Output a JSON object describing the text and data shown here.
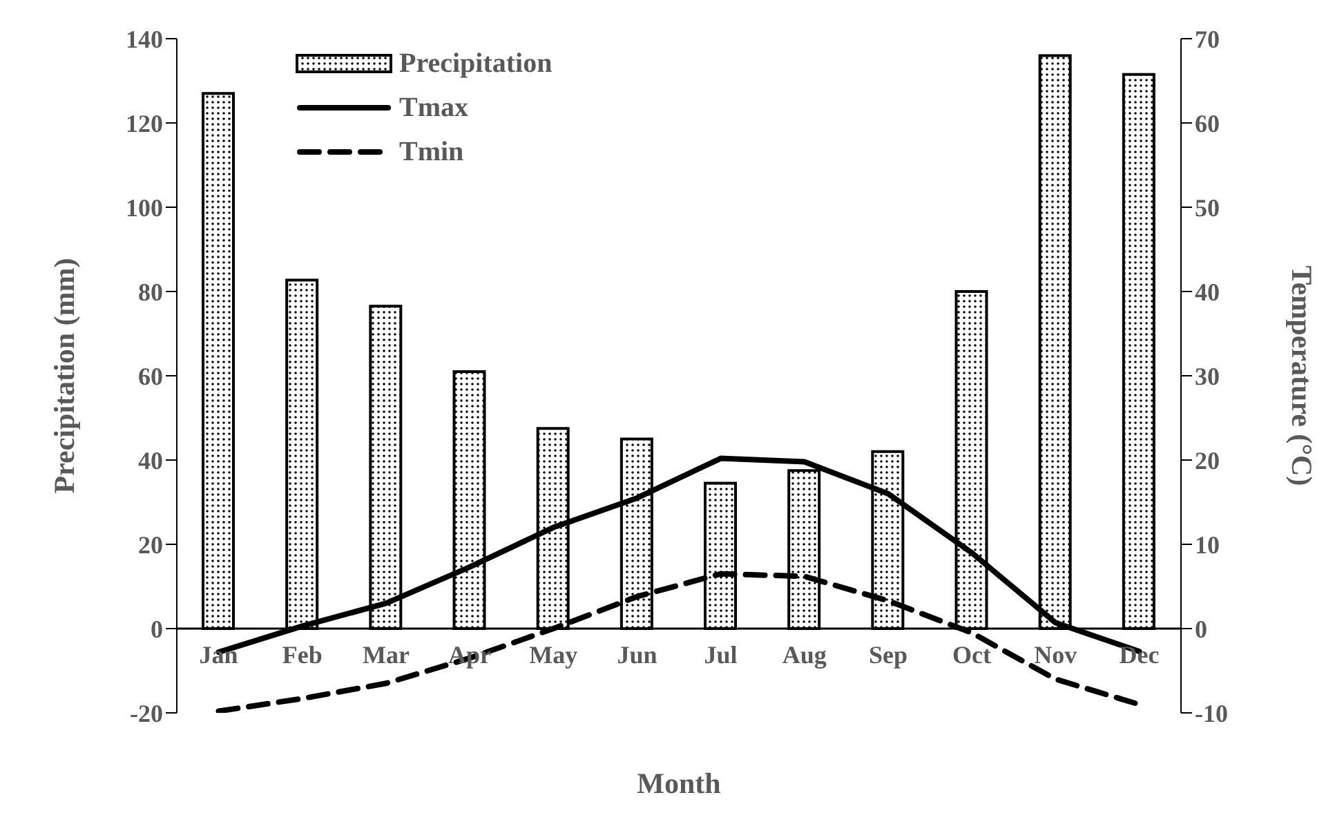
{
  "chart_data": {
    "type": "bar",
    "xlabel": "Month",
    "ylabel": "Precipitation (mm)",
    "y2label": "Temperature (°C)",
    "categories": [
      "Jan",
      "Feb",
      "Mar",
      "Apr",
      "May",
      "Jun",
      "Jul",
      "Aug",
      "Sep",
      "Oct",
      "Nov",
      "Dec"
    ],
    "series": [
      {
        "name": "Precipitation",
        "color": "#000000",
        "values": [
          127,
          82.7,
          76.5,
          61,
          47.5,
          45,
          34.5,
          37.5,
          42,
          80,
          136,
          131.5
        ]
      },
      {
        "name": "Tmax",
        "type": "line",
        "axis": "y2",
        "color": "#000000",
        "line_style": "solid",
        "values": [
          -2.8,
          0.3,
          3,
          7.3,
          12,
          15.5,
          20.2,
          19.8,
          16,
          9,
          0.7,
          -2.7
        ]
      },
      {
        "name": "Tmin",
        "type": "line",
        "axis": "y2",
        "color": "#000000",
        "line_style": "dashed",
        "values": [
          -9.8,
          -8.3,
          -6.5,
          -3.5,
          0,
          3.8,
          6.5,
          6.2,
          3.3,
          -0.5,
          -6,
          -9
        ]
      }
    ],
    "ylim": [
      -20,
      140
    ],
    "yticks": [
      -20,
      0,
      20,
      40,
      60,
      80,
      100,
      120,
      140
    ],
    "y2lim": [
      -10,
      70
    ],
    "y2ticks": [
      -10,
      0,
      10,
      20,
      30,
      40,
      50,
      60,
      70
    ],
    "legend": "top left",
    "marker": "none"
  }
}
